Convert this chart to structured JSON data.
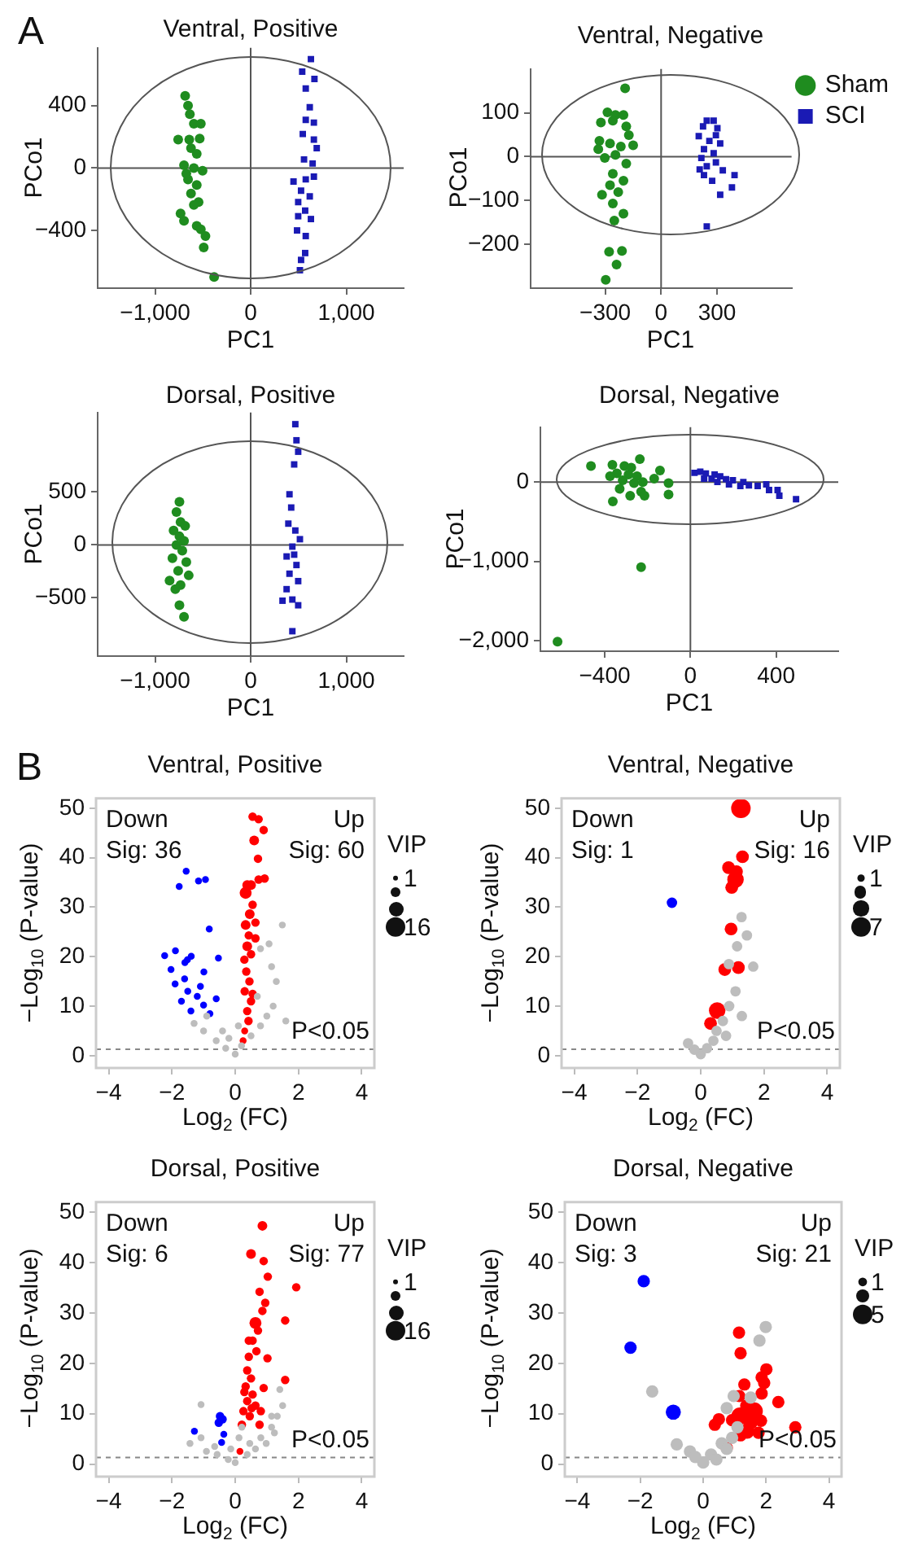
{
  "chart_data": [
    {
      "type": "scatter",
      "title": "Ventral, Positive",
      "xlabel": "PC1",
      "ylabel": "PCo1",
      "annotations": [
        "A"
      ],
      "xlim": [
        -1600,
        1600
      ],
      "ylim": [
        -770,
        770
      ],
      "xticks": [
        {
          "value": -1000,
          "label": "−1,000"
        },
        0,
        {
          "value": 1000,
          "label": "1,000"
        }
      ],
      "yticks": [
        {
          "value": -400,
          "label": "−400"
        },
        0,
        400
      ],
      "grid": false,
      "legend": false,
      "ref_lines": [
        {
          "axis": "x",
          "value": 0,
          "color": "#555555"
        },
        {
          "axis": "y",
          "value": 0,
          "color": "#555555"
        }
      ],
      "series": [
        {
          "color": "#1f8c1f",
          "marker": "circle",
          "x": [
            -685,
            -655,
            -636,
            -594,
            -521,
            -758,
            -642,
            -533,
            -624,
            -564,
            -697,
            -594,
            -503,
            -655,
            -564,
            -624,
            -545,
            -594,
            -697,
            -564,
            -521,
            -473,
            -491,
            -382,
            -733,
            -673
          ],
          "values": [
            462,
            400,
            345,
            284,
            284,
            182,
            182,
            189,
            127,
            91,
            18,
            0,
            -18,
            -73,
            -109,
            -164,
            -218,
            -236,
            -338,
            -371,
            -393,
            -436,
            -509,
            -698,
            -291,
            -36
          ]
        },
        {
          "color": "#1a1ab4",
          "marker": "square",
          "x": [
            630,
            539,
            667,
            576,
            618,
            576,
            661,
            545,
            661,
            691,
            558,
            648,
            448,
            576,
            661,
            527,
            618,
            497,
            570,
            497,
            630,
            485,
            576,
            527,
            515,
            570
          ],
          "values": [
            698,
            618,
            571,
            509,
            389,
            309,
            291,
            218,
            182,
            127,
            55,
            29,
            -87,
            -73,
            -55,
            -145,
            -182,
            -218,
            -273,
            -309,
            -327,
            -400,
            -436,
            -589,
            -655,
            -545
          ]
        }
      ]
    },
    {
      "type": "scatter",
      "title": "Ventral, Negative",
      "xlabel": "PC1",
      "ylabel": "PCo1",
      "xlim": [
        -700,
        700
      ],
      "ylim": [
        -300,
        200
      ],
      "xticks": [
        {
          "value": -300,
          "label": "−300"
        },
        0,
        300
      ],
      "yticks": [
        {
          "value": -200,
          "label": "−200"
        },
        {
          "value": -100,
          "label": "−100"
        },
        0,
        100
      ],
      "grid": false,
      "legend": "right",
      "ref_lines": [
        {
          "axis": "x",
          "value": 0,
          "color": "#555555"
        },
        {
          "axis": "y",
          "value": 0,
          "color": "#555555"
        }
      ],
      "series": [
        {
          "name": "Sham",
          "color": "#1f8c1f",
          "marker": "circle",
          "x": [
            -193,
            -288,
            -245,
            -202,
            -323,
            -259,
            -187,
            -173,
            -331,
            -274,
            -216,
            -150,
            -337,
            -245,
            -302,
            -187,
            -259,
            -202,
            -274,
            -317,
            -230,
            -259,
            -202,
            -251,
            -279,
            -210,
            -239,
            -297
          ],
          "values": [
            156,
            101,
            95,
            95,
            78,
            82,
            69,
            49,
            36,
            30,
            23,
            26,
            17,
            4,
            -3,
            -16,
            -39,
            -55,
            -65,
            -87,
            -81,
            -107,
            -130,
            -146,
            -217,
            -215,
            -246,
            -281
          ]
        },
        {
          "name": "SCI",
          "color": "#1a1ab4",
          "marker": "square",
          "x": [
            245,
            282,
            225,
            302,
            202,
            259,
            317,
            230,
            282,
            216,
            294,
            245,
            331,
            230,
            274,
            394,
            380,
            317,
            245,
            207,
            294
          ],
          "values": [
            82,
            82,
            69,
            65,
            47,
            36,
            30,
            17,
            8,
            -3,
            -13,
            -22,
            -31,
            -42,
            -55,
            -42,
            -70,
            -87,
            -159,
            -29,
            49
          ]
        }
      ]
    },
    {
      "type": "scatter",
      "title": "Dorsal, Positive",
      "xlabel": "PC1",
      "ylabel": "PCo1",
      "xlim": [
        -1600,
        1600
      ],
      "ylim": [
        -1050,
        1250
      ],
      "xticks": [
        {
          "value": -1000,
          "label": "−1,000"
        },
        0,
        {
          "value": 1000,
          "label": "1,000"
        }
      ],
      "yticks": [
        {
          "value": -500,
          "label": "−500"
        },
        0,
        500
      ],
      "grid": false,
      "legend": false,
      "ref_lines": [
        {
          "axis": "x",
          "value": 0,
          "color": "#555555"
        },
        {
          "axis": "y",
          "value": 0,
          "color": "#555555"
        }
      ],
      "series": [
        {
          "color": "#1f8c1f",
          "marker": "circle",
          "x": [
            -745,
            -776,
            -733,
            -685,
            -806,
            -745,
            -697,
            -776,
            -715,
            -818,
            -673,
            -758,
            -648,
            -848,
            -733,
            -788,
            -745,
            -697
          ],
          "values": [
            407,
            310,
            217,
            179,
            136,
            81,
            38,
            0,
            -54,
            -125,
            -163,
            -244,
            -288,
            -337,
            -380,
            -418,
            -570,
            -679
          ]
        },
        {
          "color": "#1a1ab4",
          "marker": "square",
          "x": [
            467,
            479,
            497,
            455,
            406,
            424,
            394,
            467,
            515,
            436,
            376,
            479,
            406,
            497,
            376,
            436,
            333,
            497,
            436,
            455
          ],
          "values": [
            1140,
            988,
            880,
            760,
            478,
            353,
            201,
            136,
            54,
            -16,
            -109,
            -190,
            -272,
            -342,
            -418,
            -516,
            -527,
            -570,
            -815,
            -92
          ]
        }
      ]
    },
    {
      "type": "scatter",
      "title": "Dorsal, Negative",
      "xlabel": "PC1",
      "ylabel": "PCo1",
      "xlim": [
        -700,
        690
      ],
      "ylim": [
        -2130,
        690
      ],
      "xticks": [
        {
          "value": -400,
          "label": "−400"
        },
        0,
        400
      ],
      "yticks": [
        {
          "value": -2000,
          "label": "−2,000"
        },
        {
          "value": -1000,
          "label": "−1,000"
        },
        0
      ],
      "grid": false,
      "legend": false,
      "ref_lines": [
        {
          "axis": "x",
          "value": 0,
          "color": "#555555"
        },
        {
          "axis": "y",
          "value": 0,
          "color": "#555555"
        }
      ],
      "series": [
        {
          "color": "#1f8c1f",
          "marker": "circle",
          "x": [
            -464,
            -364,
            -308,
            -236,
            -276,
            -343,
            -289,
            -249,
            -375,
            -316,
            -263,
            -222,
            -169,
            -142,
            -102,
            -330,
            -230,
            -281,
            -102,
            -362,
            -214,
            -230,
            -620
          ],
          "values": [
            201,
            216,
            201,
            288,
            180,
            108,
            93,
            72,
            72,
            22,
            -14,
            0,
            43,
            144,
            -14,
            -86,
            -122,
            -173,
            -158,
            -244,
            -173,
            -1071,
            -2010
          ]
        },
        {
          "color": "#1a1ab4",
          "marker": "square",
          "x": [
            19,
            46,
            72,
            64,
            113,
            139,
            126,
            166,
            198,
            180,
            247,
            233,
            273,
            314,
            354,
            367,
            407,
            415,
            493,
            99
          ],
          "values": [
            115,
            129,
            108,
            43,
            93,
            72,
            0,
            36,
            22,
            -29,
            0,
            -50,
            -43,
            -50,
            -29,
            -101,
            -101,
            -173,
            -216,
            43
          ]
        }
      ]
    },
    {
      "type": "bubble",
      "title": "Ventral, Positive",
      "xlabel": "Log$_{2}$ (FC)",
      "ylabel": "−Log$_{10}$ (P-value)",
      "annotations": [
        "B",
        "Down\nSig: 36",
        "Up\nSig: 60"
      ],
      "legend_title": "VIP",
      "size_legend": [
        1,
        16
      ],
      "xlim": [
        -4.4,
        4.4
      ],
      "ylim": [
        -2.5,
        52
      ],
      "xticks": [
        {
          "value": -4,
          "label": "−4"
        },
        {
          "value": -2,
          "label": "−2"
        },
        0,
        2,
        4
      ],
      "yticks": [
        0,
        10,
        20,
        30,
        40,
        50
      ],
      "grid": false,
      "legend": false,
      "ref_lines": [
        {
          "axis": "y",
          "value": 1.3,
          "label": "P<0.05",
          "color": "#888888",
          "line_style": "dashed"
        }
      ],
      "series": [
        {
          "color": "#bdbdbd",
          "x": [
            1.49,
            1.07,
            1.15,
            0.8,
            0,
            -0.3,
            -0.6,
            -1.0,
            -1.3,
            -0.9,
            0.2,
            0.5,
            0.8,
            1.0,
            1.2,
            0.7,
            -0.4,
            0.1,
            1.6,
            1.3,
            -0.2
          ],
          "values": [
            26.4,
            22.6,
            18.0,
            21.6,
            0.3,
            1.5,
            3,
            5,
            6.5,
            8,
            2,
            4,
            6,
            8,
            10,
            12,
            5,
            6,
            7,
            15,
            3.5
          ],
          "sizes": [
            2,
            2,
            2,
            2,
            2,
            2,
            2,
            2,
            2,
            2,
            2,
            2,
            2,
            2,
            2,
            2,
            2,
            2,
            2,
            2,
            2
          ]
        },
        {
          "color": "#0000ff",
          "x": [
            -1.55,
            -1.77,
            -1.16,
            -0.94,
            -0.82,
            -2.23,
            -1.89,
            -1.51,
            -1.59,
            -1.39,
            -0.53,
            -2.03,
            -0.99,
            -1.9,
            -1.5,
            -1.2,
            -1.7,
            -1.0,
            -1.4,
            -0.8,
            -1.6,
            -1.1,
            -0.6
          ],
          "values": [
            37.3,
            34.2,
            35.3,
            35.6,
            25.6,
            20.2,
            21.2,
            19.4,
            18.8,
            20.1,
            19.7,
            17.4,
            16.9,
            14.5,
            13.0,
            12.0,
            11.0,
            10.2,
            9.0,
            8.5,
            15.5,
            14.0,
            11.5
          ],
          "sizes": [
            2,
            2,
            2,
            2,
            2,
            2,
            2,
            2,
            2,
            2,
            2,
            2,
            2,
            2,
            2,
            2,
            2,
            2,
            2,
            2,
            2,
            2,
            2
          ]
        },
        {
          "color": "#ff0000",
          "x": [
            0.55,
            0.74,
            0.9,
            0.6,
            0.72,
            0.74,
            0.93,
            0.38,
            0.5,
            0.33,
            0.55,
            0.46,
            0.64,
            0.33,
            0.43,
            0.64,
            0.38,
            0.5,
            0.29,
            0.35,
            0.45,
            0.3,
            0.5,
            0.38,
            0.42,
            0.3,
            0.55,
            0.25
          ],
          "values": [
            48.3,
            47.8,
            45.6,
            43.5,
            39.8,
            35.6,
            35.8,
            34.5,
            34.5,
            32.9,
            30.5,
            28.6,
            26.9,
            26.4,
            24.3,
            23.7,
            22.1,
            20.5,
            19.4,
            17,
            15,
            13,
            11,
            9,
            7,
            5,
            12.5,
            3
          ],
          "sizes": [
            3,
            3,
            3,
            4,
            3,
            3,
            3,
            4,
            4,
            6,
            3,
            4,
            3,
            4,
            3,
            3,
            4,
            3,
            3,
            3,
            3,
            3,
            3,
            3,
            3,
            2,
            3,
            2
          ]
        }
      ]
    },
    {
      "type": "bubble",
      "title": "Ventral, Negative",
      "xlabel": "Log$_{2}$ (FC)",
      "ylabel": "−Log$_{10}$ (P-value)",
      "annotations": [
        "Down\nSig: 1",
        "Up\nSig: 16"
      ],
      "legend_title": "VIP",
      "size_legend": [
        1,
        7
      ],
      "xlim": [
        -4.4,
        4.4
      ],
      "ylim": [
        -2.5,
        52
      ],
      "xticks": [
        {
          "value": -4,
          "label": "−4"
        },
        {
          "value": -2,
          "label": "−2"
        },
        0,
        2,
        4
      ],
      "yticks": [
        0,
        10,
        20,
        30,
        40,
        50
      ],
      "grid": false,
      "legend": false,
      "ref_lines": [
        {
          "axis": "y",
          "value": 1.3,
          "label": "P<0.05",
          "color": "#888888",
          "line_style": "dashed"
        }
      ],
      "series": [
        {
          "color": "#bdbdbd",
          "x": [
            1.29,
            1.46,
            1.15,
            1.66,
            0.89,
            0,
            0.2,
            -0.2,
            0.4,
            0.5,
            0.7,
            0.9,
            1.1,
            -0.4,
            0.8,
            1.3
          ],
          "values": [
            28.0,
            24.3,
            22.1,
            18.0,
            18.5,
            0.3,
            1.5,
            1.2,
            3,
            5,
            7,
            10,
            13,
            2.5,
            4,
            8
          ],
          "sizes": [
            2,
            2,
            2,
            2,
            2,
            2,
            2,
            2,
            2,
            2,
            2,
            2,
            2,
            2,
            2,
            2
          ]
        },
        {
          "color": "#0000ff",
          "x": [
            -0.91
          ],
          "values": [
            30.9
          ],
          "sizes": [
            2
          ]
        },
        {
          "color": "#ff0000",
          "x": [
            1.27,
            1.32,
            0.88,
            1.13,
            1.1,
            0.98,
            0.96,
            0.76,
            1.19,
            0.52,
            0.31
          ],
          "values": [
            50.0,
            40.2,
            38.0,
            37.2,
            35.6,
            34.0,
            25.6,
            17.4,
            17.8,
            9.1,
            6.5
          ],
          "sizes": [
            7,
            3,
            3,
            3,
            5,
            3,
            3,
            3,
            3,
            5,
            3
          ]
        }
      ]
    },
    {
      "type": "bubble",
      "title": "Dorsal, Positive",
      "xlabel": "Log$_{2}$ (FC)",
      "ylabel": "−Log$_{10}$ (P-value)",
      "annotations": [
        "Down\nSig: 6",
        "Up\nSig: 77"
      ],
      "legend_title": "VIP",
      "size_legend": [
        1,
        16
      ],
      "xlim": [
        -4.4,
        4.4
      ],
      "ylim": [
        -2.5,
        52
      ],
      "xticks": [
        {
          "value": -4,
          "label": "−4"
        },
        {
          "value": -2,
          "label": "−2"
        },
        0,
        2,
        4
      ],
      "yticks": [
        0,
        10,
        20,
        30,
        40,
        50
      ],
      "grid": false,
      "legend": false,
      "ref_lines": [
        {
          "axis": "y",
          "value": 1.3,
          "label": "P<0.05",
          "color": "#888888",
          "line_style": "dashed"
        }
      ],
      "series": [
        {
          "color": "#bdbdbd",
          "x": [
            0,
            -0.22,
            -0.57,
            -0.91,
            -1.43,
            -1.08,
            0.38,
            0.64,
            0.98,
            1.24,
            1.33,
            1.5,
            1.15,
            0.81,
            -1.08,
            1.41,
            0.12,
            0.21,
            -0.65,
            -0.14,
            0.46,
            1.15
          ],
          "values": [
            0.3,
            0.9,
            1.9,
            2.5,
            4.1,
            5.2,
            1.9,
            3.0,
            4.1,
            6.2,
            9.5,
            11.6,
            7.3,
            5.2,
            11.8,
            14.8,
            5.2,
            7.3,
            3.5,
            3.0,
            4.1,
            9.5
          ],
          "sizes": [
            2,
            2,
            2,
            2,
            2,
            2,
            2,
            2,
            2,
            2,
            2,
            2,
            2,
            2,
            2,
            2,
            2,
            2,
            2,
            2,
            2,
            2
          ]
        },
        {
          "color": "#0000ff",
          "x": [
            -0.48,
            -0.4,
            -0.52,
            -1.29,
            -0.36,
            -0.43
          ],
          "values": [
            9.5,
            8.9,
            8.2,
            6.5,
            5.9,
            4.3
          ],
          "sizes": [
            3,
            3,
            3,
            2,
            2,
            2
          ]
        },
        {
          "color": "#ff0000",
          "x": [
            0.86,
            0.5,
            0.9,
            1.03,
            0.77,
            1.93,
            0.95,
            0.86,
            0.64,
            0.43,
            0.55,
            1.58,
            0.43,
            1.02,
            0.38,
            0.5,
            1.58,
            0.33,
            0.9,
            0.55,
            0.38,
            0.64,
            0.26,
            0.46,
            0.81,
            0.21,
            0.77,
            0.15,
            0.52,
            0.29,
            0.72,
            0.67
          ],
          "values": [
            47.3,
            41.7,
            40.3,
            37.2,
            34.2,
            35.1,
            32.0,
            30.4,
            28.0,
            24.5,
            24.5,
            28.5,
            21.3,
            21.0,
            18.6,
            17.0,
            16.7,
            15.4,
            15.1,
            13.8,
            12.5,
            11.6,
            10.5,
            9.5,
            10.5,
            7.8,
            7.8,
            2.5,
            11.1,
            14.3,
            26.5,
            22.4
          ],
          "sizes": [
            4,
            4,
            3,
            3,
            3,
            3,
            3,
            3,
            6,
            3,
            3,
            3,
            3,
            3,
            3,
            3,
            3,
            3,
            3,
            3,
            3,
            3,
            3,
            3,
            3,
            3,
            3,
            2,
            3,
            3,
            3,
            3
          ]
        }
      ]
    },
    {
      "type": "bubble",
      "title": "Dorsal, Negative",
      "xlabel": "Log$_{2}$ (FC)",
      "ylabel": "−Log$_{10}$ (P-value)",
      "annotations": [
        "Down\nSig: 3",
        "Up\nSig: 21"
      ],
      "legend_title": "VIP",
      "size_legend": [
        1,
        5
      ],
      "xlim": [
        -4.4,
        4.4
      ],
      "ylim": [
        -2.5,
        52
      ],
      "xticks": [
        {
          "value": -4,
          "label": "−4"
        },
        {
          "value": -2,
          "label": "−2"
        },
        0,
        2,
        4
      ],
      "yticks": [
        0,
        10,
        20,
        30,
        40,
        50
      ],
      "grid": false,
      "legend": false,
      "ref_lines": [
        {
          "axis": "y",
          "value": 1.3,
          "label": "P<0.05",
          "color": "#888888",
          "line_style": "dashed"
        }
      ],
      "series": [
        {
          "color": "#bdbdbd",
          "x": [
            1.99,
            1.79,
            -1.62,
            0.97,
            1.51,
            0.75,
            -0.84,
            -0.42,
            0,
            0.25,
            0.59,
            0.92,
            1.09,
            -0.25,
            0.42,
            0.75
          ],
          "values": [
            27.2,
            24.5,
            14.4,
            13.5,
            13.2,
            11.1,
            3.9,
            2.5,
            0.3,
            1.9,
            4.1,
            5.2,
            7.3,
            1.4,
            0.9,
            3.0
          ],
          "sizes": [
            2,
            2,
            2,
            2,
            2,
            2,
            2,
            2,
            2,
            2,
            2,
            2,
            2,
            2,
            2,
            2
          ]
        },
        {
          "color": "#0000ff",
          "x": [
            -1.89,
            -2.31,
            -0.95
          ],
          "values": [
            36.3,
            23.1,
            10.3
          ],
          "sizes": [
            2,
            2,
            3
          ]
        },
        {
          "color": "#ff0000",
          "x": [
            1.14,
            1.19,
            2.01,
            1.86,
            1.94,
            1.31,
            1.15,
            1.86,
            2.39,
            1.37,
            1.17,
            1.62,
            1.51,
            0.92,
            0.37,
            0.5,
            1.39,
            1.19,
            1.76,
            2.93,
            0.75,
            1.84
          ],
          "values": [
            26.1,
            22.0,
            18.8,
            17.2,
            16.1,
            15.8,
            13.5,
            14.0,
            12.3,
            11.6,
            9.5,
            10.5,
            8.4,
            8.7,
            7.8,
            8.9,
            6.5,
            5.7,
            6.2,
            7.3,
            3.2,
            8.6
          ],
          "sizes": [
            2,
            2,
            2,
            2,
            2,
            2,
            2,
            2,
            2,
            2,
            4,
            4,
            3,
            2,
            2,
            2,
            3,
            2,
            2,
            2,
            2,
            2
          ]
        }
      ]
    }
  ]
}
